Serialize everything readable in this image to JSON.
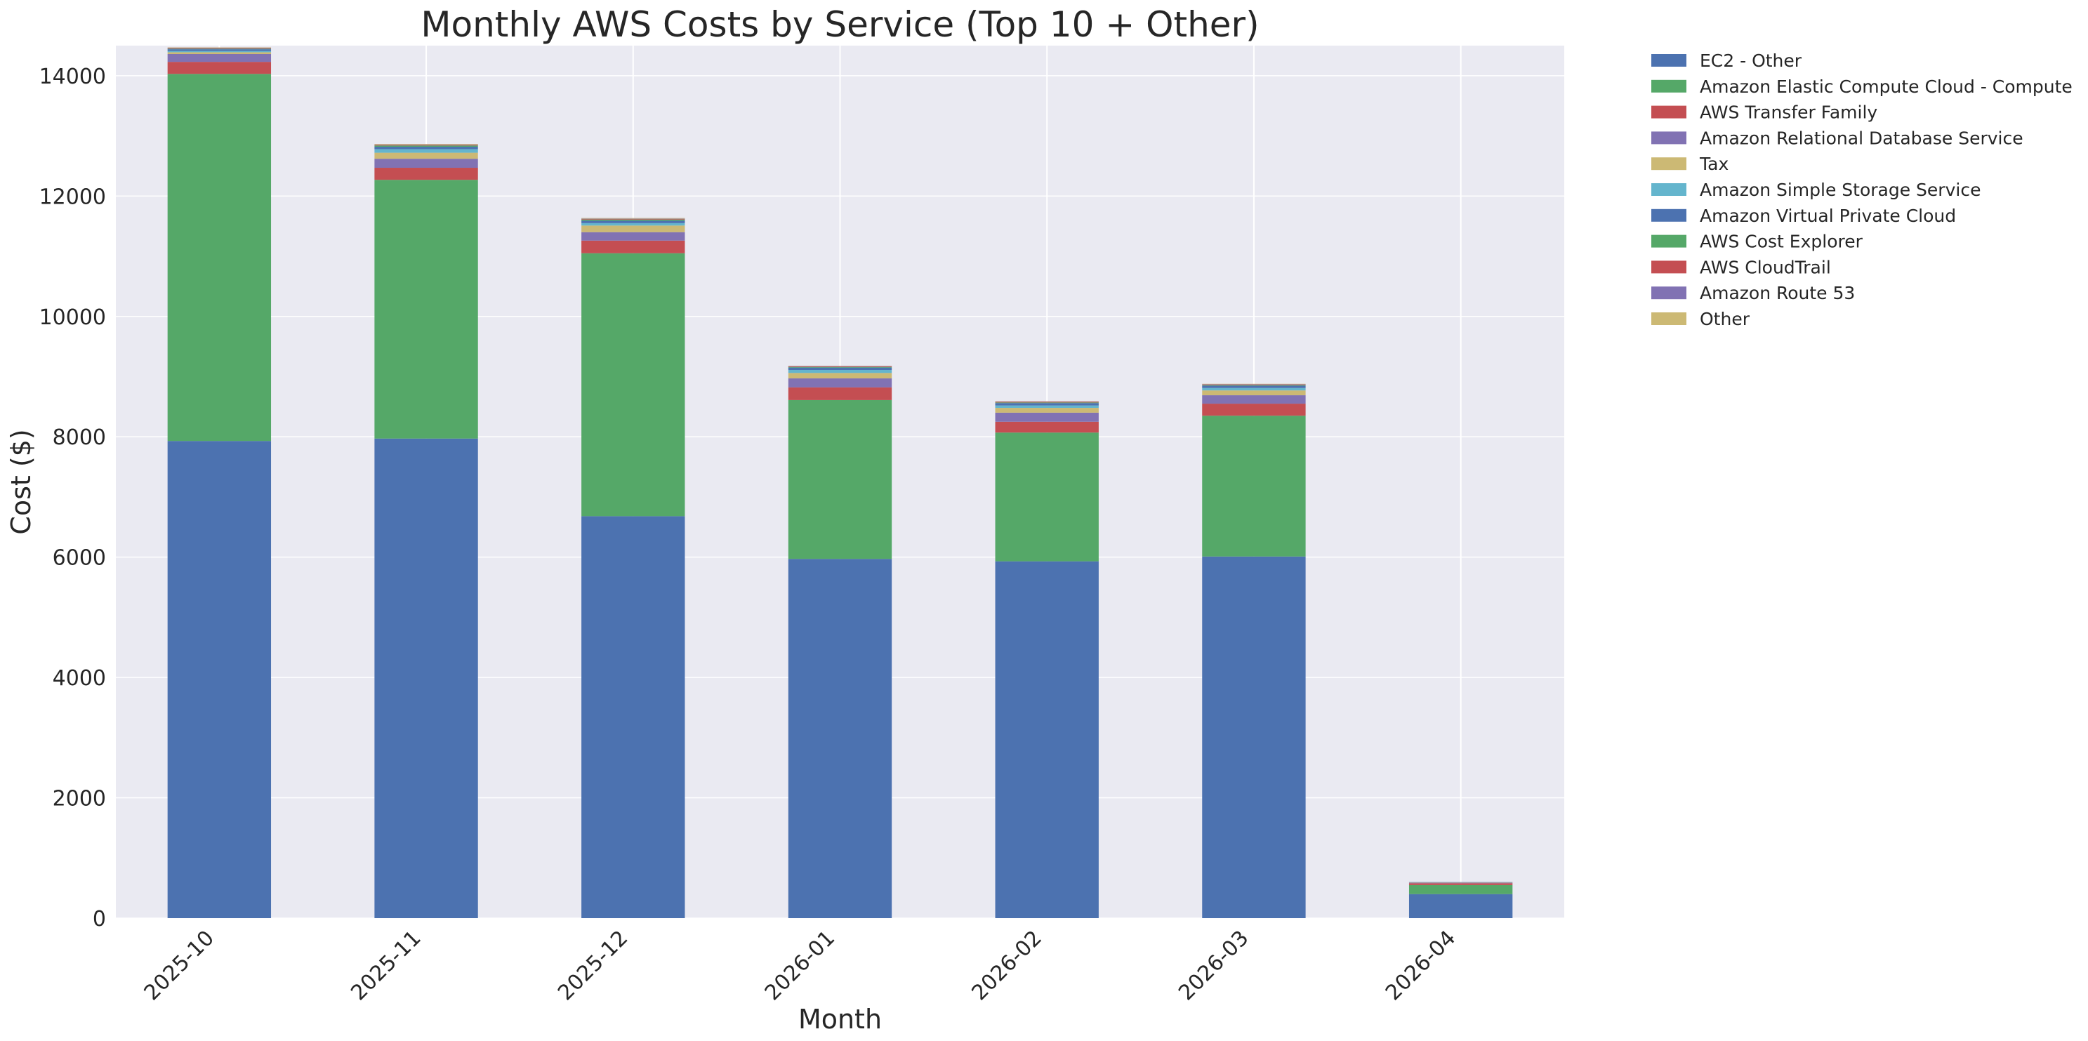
{
  "chart_data": {
    "type": "bar",
    "stacked": true,
    "title": "Monthly AWS Costs by Service (Top 10 + Other)",
    "xlabel": "Month",
    "ylabel": "Cost ($)",
    "ylim": [
      0,
      14500
    ],
    "yticks": [
      0,
      2000,
      4000,
      6000,
      8000,
      10000,
      12000,
      14000
    ],
    "grid": true,
    "legend_position": "outside-top-right",
    "background_color": "#eaeaf2",
    "categories": [
      "2025-10",
      "2025-11",
      "2025-12",
      "2026-01",
      "2026-02",
      "2026-03",
      "2026-04"
    ],
    "series": [
      {
        "name": "EC2 - Other",
        "color": "#4c72b0",
        "values": [
          7930,
          7970,
          6680,
          5970,
          5930,
          6010,
          400
        ]
      },
      {
        "name": "Amazon Elastic Compute Cloud - Compute",
        "color": "#55a868",
        "values": [
          6100,
          4300,
          4370,
          2640,
          2140,
          2340,
          150
        ]
      },
      {
        "name": "AWS Transfer Family",
        "color": "#c44e52",
        "values": [
          200,
          200,
          210,
          210,
          180,
          200,
          30
        ]
      },
      {
        "name": "Amazon Relational Database Service",
        "color": "#8172b3",
        "values": [
          130,
          150,
          140,
          150,
          150,
          140,
          10
        ]
      },
      {
        "name": "Tax",
        "color": "#ccb974",
        "values": [
          30,
          100,
          110,
          90,
          80,
          80,
          5
        ]
      },
      {
        "name": "Amazon Simple Storage Service",
        "color": "#64b5cd",
        "values": [
          20,
          60,
          40,
          50,
          40,
          40,
          3
        ]
      },
      {
        "name": "Amazon Virtual Private Cloud",
        "color": "#4c72b0",
        "values": [
          30,
          40,
          40,
          40,
          40,
          40,
          3
        ]
      },
      {
        "name": "AWS Cost Explorer",
        "color": "#55a868",
        "values": [
          10,
          20,
          20,
          10,
          10,
          10,
          0
        ]
      },
      {
        "name": "AWS CloudTrail",
        "color": "#c44e52",
        "values": [
          10,
          10,
          10,
          10,
          10,
          10,
          0
        ]
      },
      {
        "name": "Amazon Route 53",
        "color": "#8172b3",
        "values": [
          5,
          5,
          5,
          5,
          5,
          5,
          0
        ]
      },
      {
        "name": "Other",
        "color": "#ccb974",
        "values": [
          5,
          10,
          10,
          5,
          5,
          5,
          0
        ]
      }
    ]
  }
}
